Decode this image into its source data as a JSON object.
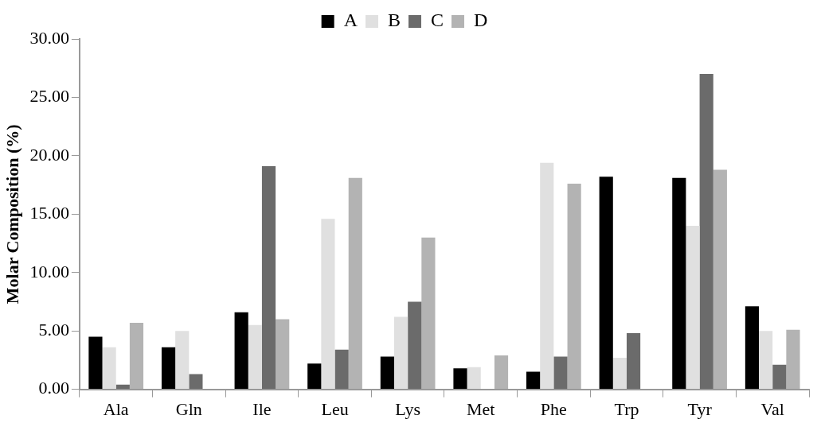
{
  "chart_data": {
    "type": "bar",
    "ylabel": "Molar Composition (%)",
    "categories": [
      "Ala",
      "Gln",
      "Ile",
      "Leu",
      "Lys",
      "Met",
      "Phe",
      "Trp",
      "Tyr",
      "Val"
    ],
    "series": [
      {
        "name": "A",
        "color": "#000000",
        "values": [
          4.5,
          3.6,
          6.6,
          2.2,
          2.8,
          1.8,
          1.5,
          18.2,
          18.1,
          7.1
        ]
      },
      {
        "name": "B",
        "color": "#e0e0e0",
        "values": [
          3.6,
          5.0,
          5.5,
          14.6,
          6.2,
          1.9,
          19.4,
          2.7,
          14.0,
          5.0
        ]
      },
      {
        "name": "C",
        "color": "#6b6b6b",
        "values": [
          0.4,
          1.3,
          19.1,
          3.4,
          7.5,
          null,
          2.8,
          4.8,
          27.0,
          2.1
        ]
      },
      {
        "name": "D",
        "color": "#b3b3b3",
        "values": [
          5.7,
          null,
          6.0,
          18.1,
          13.0,
          2.9,
          17.6,
          null,
          18.8,
          5.1
        ]
      }
    ],
    "ylim": [
      0,
      30
    ],
    "yticks": [
      {
        "value": 0,
        "label": "0.00"
      },
      {
        "value": 5,
        "label": "5.00"
      },
      {
        "value": 10,
        "label": "10.00"
      },
      {
        "value": 15,
        "label": "15.00"
      },
      {
        "value": 20,
        "label": "20.00"
      },
      {
        "value": 25,
        "label": "25.00"
      },
      {
        "value": 30,
        "label": "30.00"
      }
    ],
    "grid": false,
    "legend": "top"
  }
}
